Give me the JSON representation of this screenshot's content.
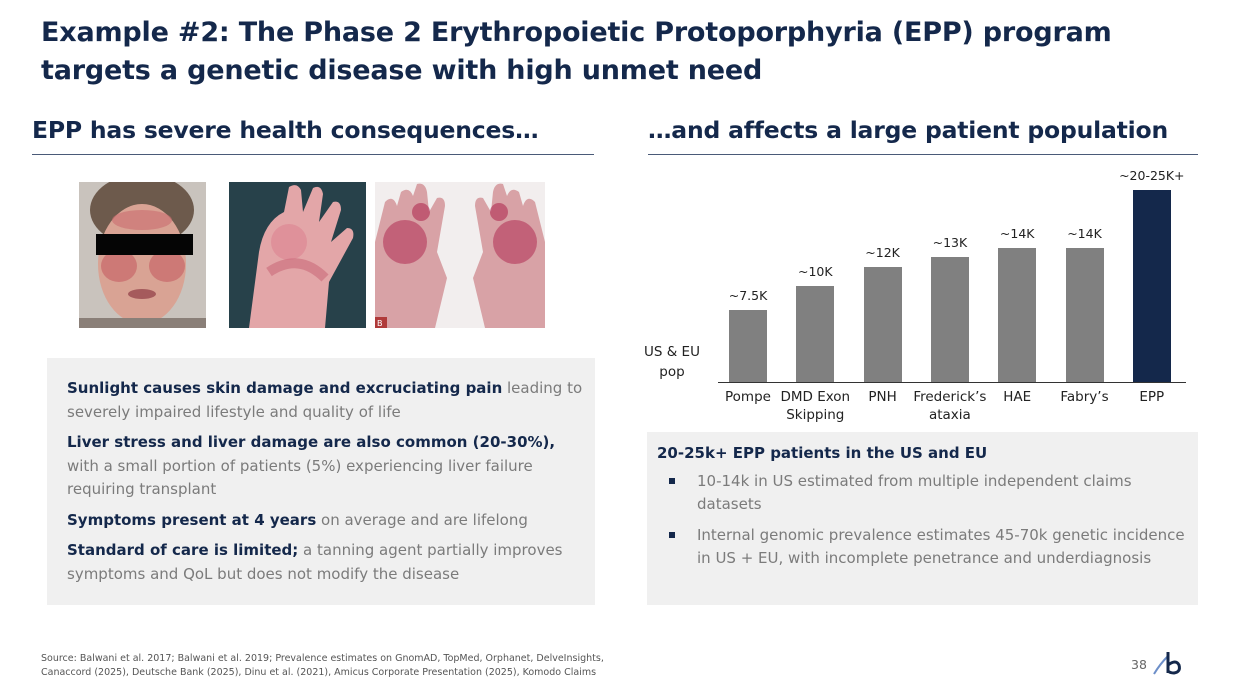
{
  "slide": {
    "title": "Example #2: The Phase 2 Erythropoietic Protoporphyria (EPP) program targets a genetic disease with high unmet need",
    "left_heading": "EPP has severe health consequences…",
    "right_heading": "…and affects a large patient population",
    "page_number": "38",
    "source": "Source: Balwani et al. 2017; Balwani et al. 2019; Prevalence estimates on GnomAD, TopMed, Orphanet, DelveInsights, Canaccord (2025), Deutsche Bank (2025), Dinu et al. (2021), Amicus Corporate Presentation (2025), Komodo Claims"
  },
  "photos": [
    {
      "icon": "face-photo-redacted"
    },
    {
      "icon": "hand-photo"
    },
    {
      "icon": "both-hands-photo",
      "corner_label": "B"
    }
  ],
  "consequences": [
    {
      "bold": "Sunlight causes skin damage and excruciating pain",
      "rest": " leading to severely impaired lifestyle and quality of life"
    },
    {
      "bold": "Liver stress and liver damage are also common (20-30%),",
      "rest": " with a small portion of patients (5%) experiencing liver failure requiring transplant"
    },
    {
      "bold": "Symptoms present at 4 years",
      "rest": " on average and are lifelong"
    },
    {
      "bold": "Standard of care is limited;",
      "rest": " a tanning agent partially improves symptoms and QoL but does not modify the disease"
    }
  ],
  "chart_data": {
    "type": "bar",
    "ylabel": "US & EU pop",
    "categories": [
      "Pompe",
      "DMD Exon Skipping",
      "PNH",
      "Frederick’s ataxia",
      "HAE",
      "Fabry’s",
      "EPP"
    ],
    "values": [
      7500,
      10000,
      12000,
      13000,
      14000,
      14000,
      20000
    ],
    "value_labels": [
      "~7.5K",
      "~10K",
      "~12K",
      "~13K",
      "~14K",
      "~14K",
      "~20-25K+"
    ],
    "colors": [
      "#808080",
      "#808080",
      "#808080",
      "#808080",
      "#808080",
      "#808080",
      "#14284b"
    ],
    "ylim": [
      0,
      20000
    ],
    "grid": false,
    "legend": "none"
  },
  "population": {
    "heading": "20-25k+ EPP patients in the US and EU",
    "bullets": [
      "10-14k in US estimated from multiple independent claims datasets",
      "Internal genomic prevalence estimates 45-70k genetic incidence in US + EU, with incomplete penetrance and underdiagnosis"
    ]
  }
}
